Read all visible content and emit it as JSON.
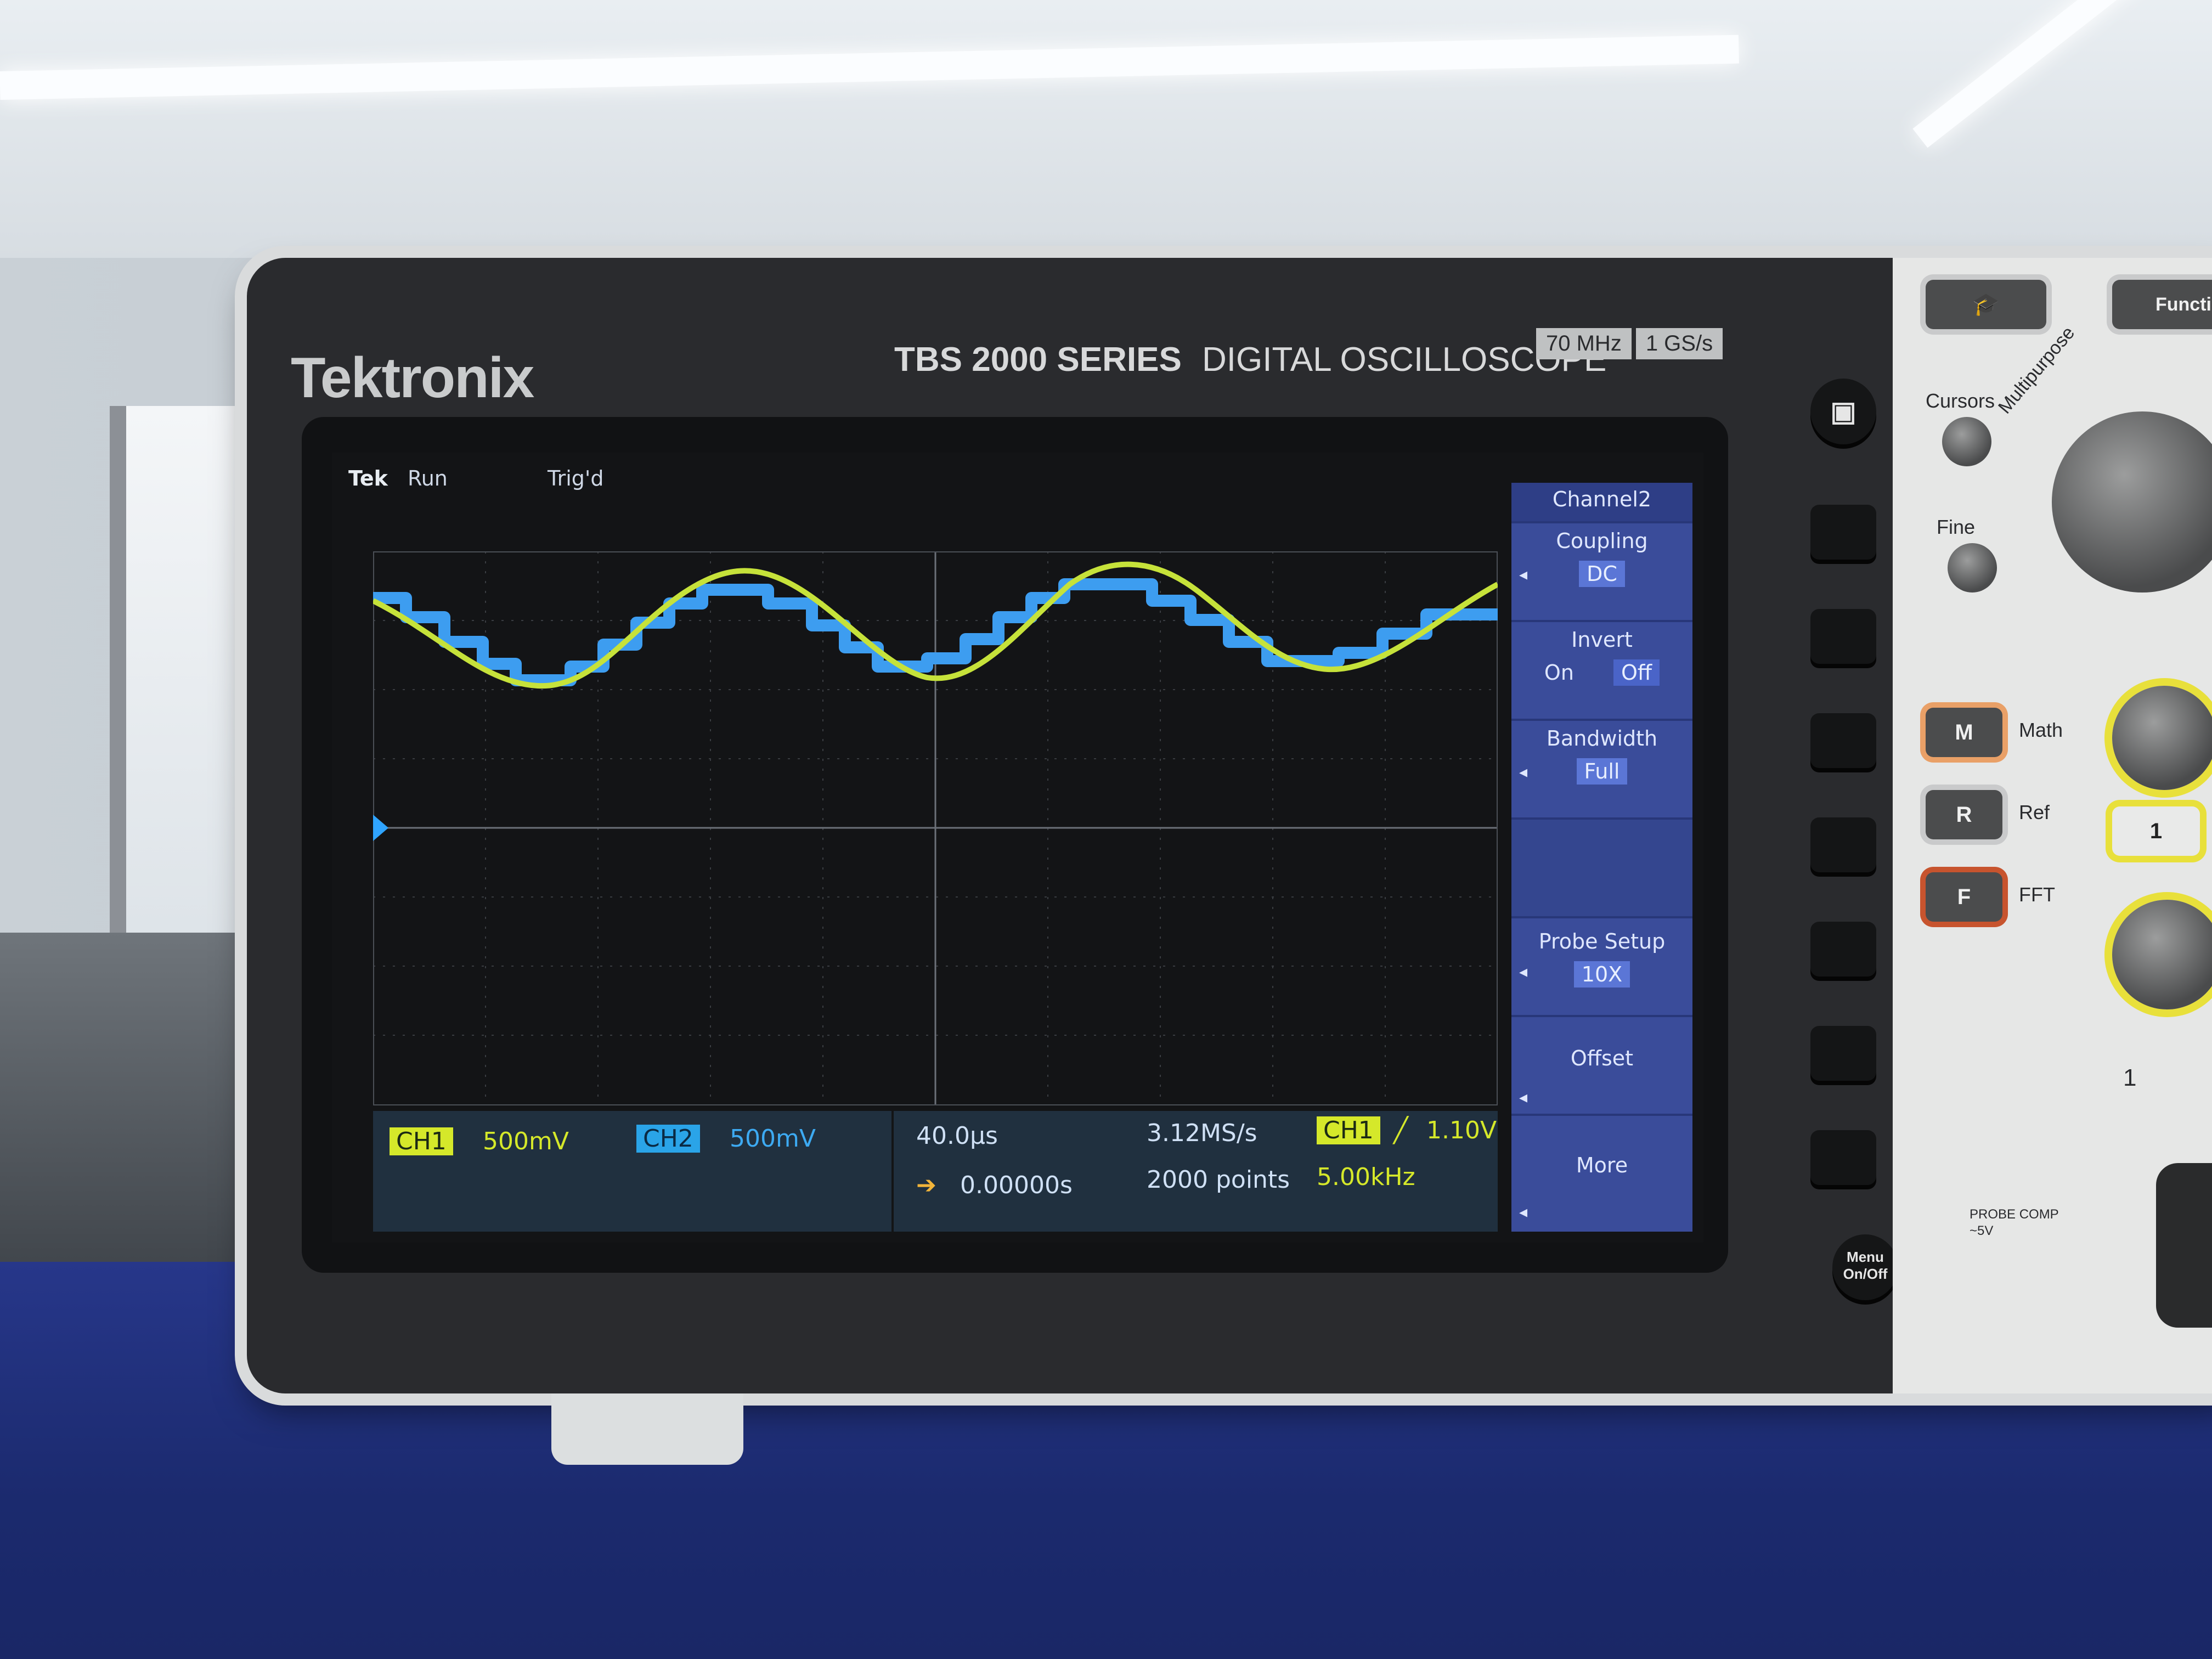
{
  "device": {
    "brand": "Tektronix",
    "series": "TBS 2000 SERIES",
    "type": "DIGITAL OSCILLOSCOPE",
    "bandwidth_badge": "70 MHz",
    "sample_badge": "1 GS/s"
  },
  "status_bar": {
    "logo": "Tek",
    "acquire_state": "Run",
    "trigger_state": "Trig'd",
    "help_icon": "question-circle-icon"
  },
  "side_menu": {
    "title": "Channel2",
    "coupling": {
      "label": "Coupling",
      "value": "DC"
    },
    "invert": {
      "label": "Invert",
      "on_label": "On",
      "off_label": "Off",
      "selected": "Off"
    },
    "bandwidth": {
      "label": "Bandwidth",
      "value": "Full"
    },
    "probe_setup": {
      "label": "Probe Setup",
      "value": "10X"
    },
    "offset": {
      "label": "Offset"
    },
    "more": {
      "label": "More"
    }
  },
  "readout": {
    "ch1_tag": "CH1",
    "ch1_scale": "500mV",
    "ch2_tag": "CH2",
    "ch2_scale": "500mV",
    "timebase": "40.0µs",
    "sample_rate": "3.12MS/s",
    "trigger_source": "CH1",
    "trigger_level": "1.10V",
    "delay": "0.00000s",
    "record_length": "2000 points",
    "frequency": "5.00kHz"
  },
  "waveforms": {
    "ch1_color": "#c6e23a",
    "ch2_color": "#3d9df0",
    "ch1_marker": "1"
  },
  "panel": {
    "cursors_label": "Cursors",
    "fine_label": "Fine",
    "multipurpose_label": "Multipurpose",
    "math_btn": "M",
    "math_label": "Math",
    "ref_btn": "R",
    "ref_label": "Ref",
    "fft_btn": "F",
    "fft_label": "FFT",
    "channel1_btn": "1",
    "function_btn": "Functi",
    "menu_btn": "Menu On/Off",
    "probe_comp": "PROBE COMP",
    "probe_comp_value": "~5V",
    "channel_label": "1"
  }
}
